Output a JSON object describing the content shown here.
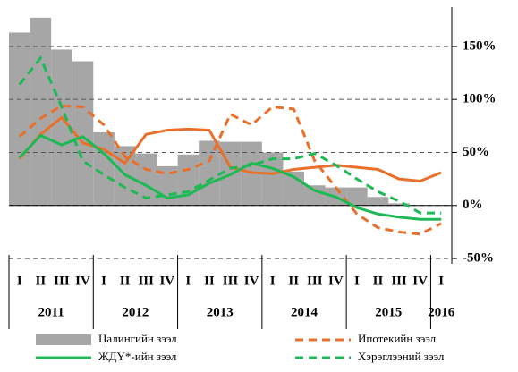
{
  "chart_data": {
    "type": "bar_line",
    "categories": [
      "I",
      "II",
      "III",
      "IV",
      "I",
      "II",
      "III",
      "IV",
      "I",
      "II",
      "III",
      "IV",
      "I",
      "II",
      "III",
      "IV",
      "I",
      "II",
      "III",
      "IV",
      "I"
    ],
    "years": [
      "2011",
      "2012",
      "2013",
      "2014",
      "2015",
      "2016"
    ],
    "series": [
      {
        "name": "Цалингийн зээл",
        "type": "bar",
        "color": "#a6a6a6",
        "values": [
          163,
          177,
          147,
          136,
          69,
          56,
          49,
          37,
          48,
          61,
          60,
          60,
          50,
          32,
          19,
          17,
          17,
          8,
          2,
          0,
          0
        ]
      },
      {
        "type": "line",
        "color": "#e8702a",
        "dash": false,
        "values": [
          44,
          67,
          83,
          59,
          53,
          40,
          67,
          71,
          72,
          71,
          36,
          31,
          30,
          34,
          36,
          38,
          36,
          34,
          25,
          23,
          31
        ]
      },
      {
        "name": "Ипотекийн зээл",
        "type": "line",
        "color": "#e8702a",
        "dash": true,
        "values": [
          65,
          82,
          94,
          93,
          76,
          46,
          34,
          30,
          34,
          42,
          86,
          76,
          93,
          91,
          42,
          17,
          -8,
          -21,
          -25,
          -27,
          -17
        ]
      },
      {
        "name": "ЖДҮ*-ийн зээл",
        "type": "line",
        "color": "#1db954",
        "dash": false,
        "values": [
          45,
          66,
          57,
          65,
          49,
          29,
          19,
          7,
          10,
          21,
          29,
          40,
          35,
          27,
          14,
          8,
          -2,
          -8,
          -11,
          -13,
          -13
        ]
      },
      {
        "name": "Хэрэглээний зээл",
        "type": "line",
        "color": "#1db954",
        "dash": true,
        "values": [
          114,
          139,
          93,
          42,
          29,
          17,
          7,
          10,
          13,
          24,
          35,
          38,
          44,
          44,
          49,
          38,
          25,
          13,
          4,
          -7,
          -7
        ]
      }
    ],
    "ylim": [
      -55,
      187
    ],
    "yticks": [
      {
        "value": -50,
        "label": "-50%"
      },
      {
        "value": 0,
        "label": "0%"
      },
      {
        "value": 50,
        "label": "50%"
      },
      {
        "value": 100,
        "label": "100%"
      },
      {
        "value": 150,
        "label": "150%"
      }
    ],
    "grid": true
  }
}
